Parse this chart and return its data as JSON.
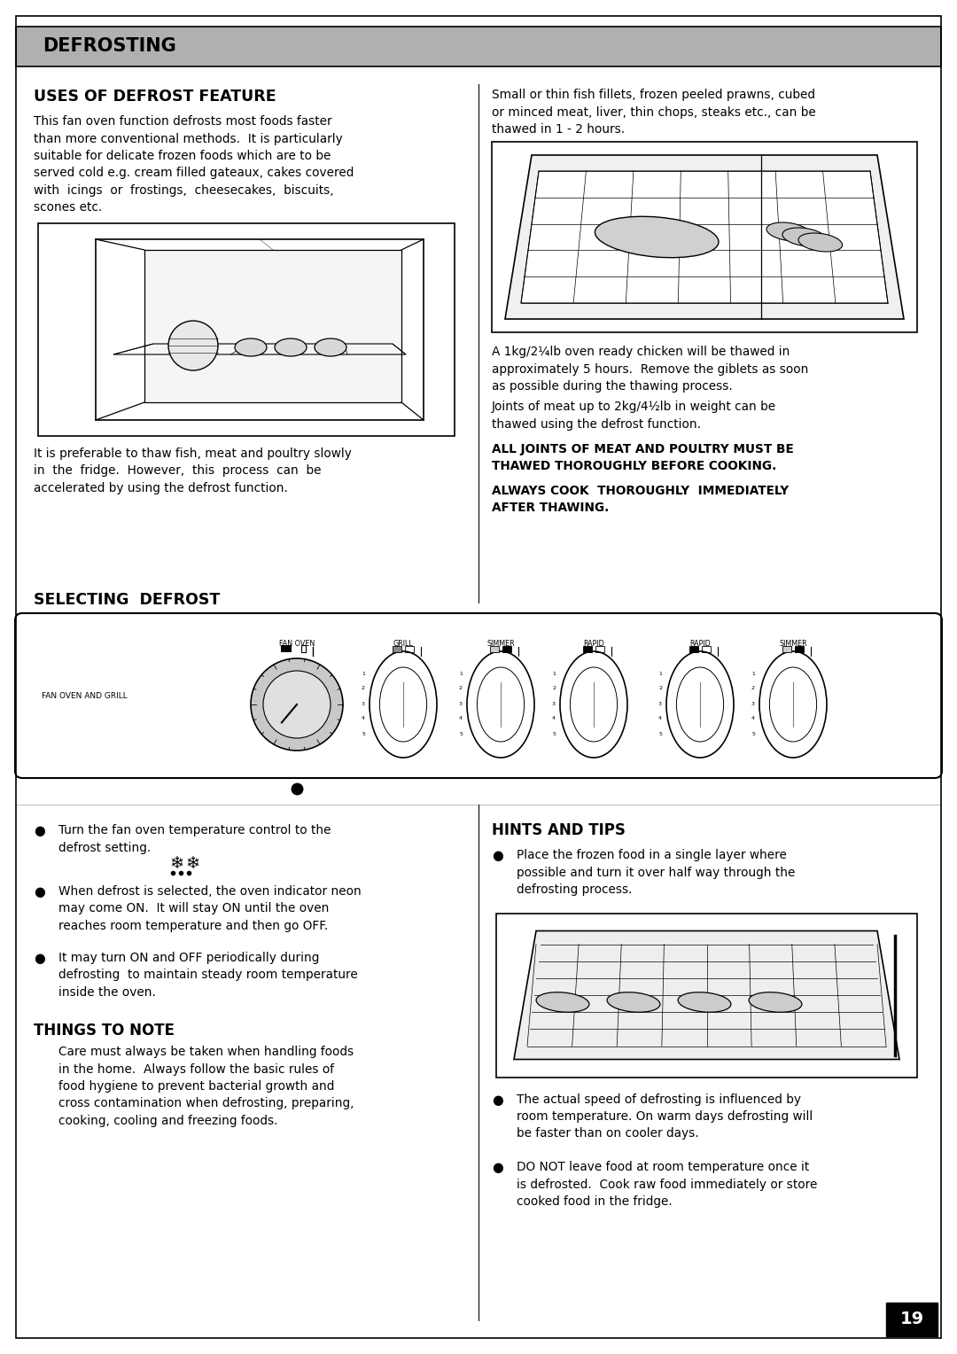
{
  "title": "DEFROSTING",
  "title_bg": "#b0b0b0",
  "section1_heading": "USES OF DEFROST FEATURE",
  "section1_para1_lines": [
    "This fan oven function defrosts most foods faster",
    "than more conventional methods.  It is particularly",
    "suitable for delicate frozen foods which are to be",
    "served cold e.g. cream filled gateaux, cakes covered",
    "with  icings  or  frostings,  cheesecakes,  biscuits,",
    "scones etc."
  ],
  "section1_para2_lines": [
    "It is preferable to thaw fish, meat and poultry slowly",
    "in  the  fridge.  However,  this  process  can  be",
    "accelerated by using the defrost function."
  ],
  "section2_heading": "SELECTING  DEFROST",
  "rp1_lines": [
    "Small or thin fish fillets, frozen peeled prawns, cubed",
    "or minced meat, liver, thin chops, steaks etc., can be",
    "thawed in 1 - 2 hours."
  ],
  "rp2_lines": [
    "A 1kg/2¼lb oven ready chicken will be thawed in",
    "approximately 5 hours.  Remove the giblets as soon",
    "as possible during the thawing process."
  ],
  "rp3_lines": [
    "Joints of meat up to 2kg/4½lb in weight can be",
    "thawed using the defrost function."
  ],
  "rb1_lines": [
    "ALL JOINTS OF MEAT AND POULTRY MUST BE",
    "THAWED THOROUGHLY BEFORE COOKING."
  ],
  "rb2_lines": [
    "ALWAYS COOK  THOROUGHLY  IMMEDIATELY",
    "AFTER THAWING."
  ],
  "bullet1_lines": [
    "Turn the fan oven temperature control to the",
    "defrost setting."
  ],
  "bullet2_lines": [
    "When defrost is selected, the oven indicator neon",
    "may come ON.  It will stay ON until the oven",
    "reaches room temperature and then go OFF."
  ],
  "bullet3_lines": [
    "It may turn ON and OFF periodically during",
    "defrosting  to maintain steady room temperature",
    "inside the oven."
  ],
  "things_heading": "THINGS TO NOTE",
  "things_lines": [
    "Care must always be taken when handling foods",
    "in the home.  Always follow the basic rules of",
    "food hygiene to prevent bacterial growth and",
    "cross contamination when defrosting, preparing,",
    "cooking, cooling and freezing foods."
  ],
  "hints_heading": "HINTS AND TIPS",
  "hb1_lines": [
    "Place the frozen food in a single layer where",
    "possible and turn it over half way through the",
    "defrosting process."
  ],
  "hb2_lines": [
    "The actual speed of defrosting is influenced by",
    "room temperature. On warm days defrosting will",
    "be faster than on cooler days."
  ],
  "hb3_lines": [
    "DO NOT leave food at room temperature once it",
    "is defrosted.  Cook raw food immediately or store",
    "cooked food in the fridge."
  ],
  "page_number": "19",
  "knob_labels": [
    "FAN OVEN",
    "GRILL",
    "SIMMER",
    "RAPID",
    "RAPID",
    "SIMMER"
  ],
  "panel_label": "FAN OVEN AND GRILL"
}
